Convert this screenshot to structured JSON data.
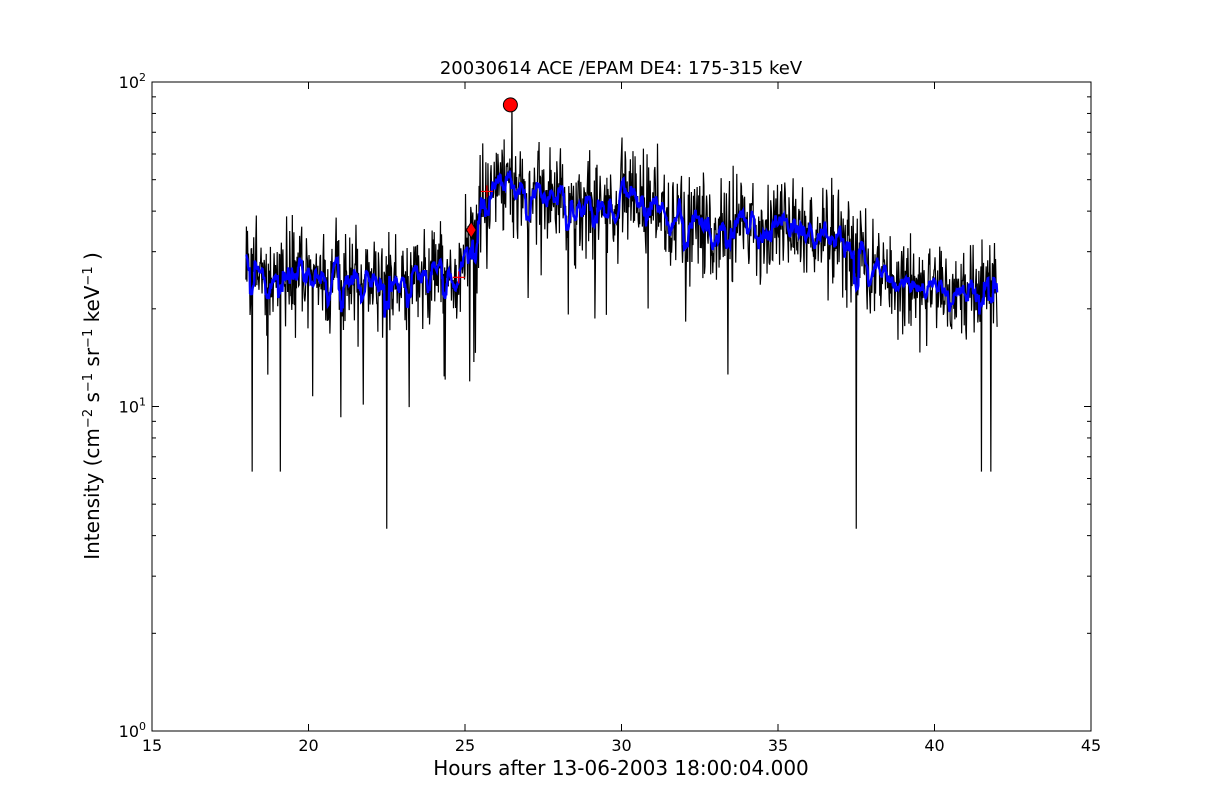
{
  "chart_data": {
    "type": "line",
    "title": "20030614 ACE /EPAM DE4: 175-315 keV",
    "xlabel": "Hours after 13-06-2003 18:00:04.000",
    "ylabel": {
      "prefix": "Intensity (cm",
      "sup1": "−2",
      "mid1": " s",
      "sup2": "−1",
      "mid2": " sr",
      "sup3": "−1",
      "mid3": " keV",
      "sup4": "−1",
      "suffix": " )"
    },
    "xlim": [
      15,
      45
    ],
    "ylim": [
      1,
      100
    ],
    "yscale": "log",
    "grid": false,
    "x_ticks": [
      15,
      20,
      25,
      30,
      35,
      40,
      45
    ],
    "x_tick_labels": [
      "15",
      "20",
      "25",
      "30",
      "35",
      "40",
      "45"
    ],
    "y_ticks": [
      1,
      10,
      100
    ],
    "y_tick_labels": [
      {
        "base": "10",
        "exp": "0"
      },
      {
        "base": "10",
        "exp": "1"
      },
      {
        "base": "10",
        "exp": "2"
      }
    ],
    "series": [
      {
        "style": "raw",
        "color": "#000000",
        "x_range": [
          18.0,
          42.0
        ],
        "trend": [
          [
            18.0,
            26
          ],
          [
            20.0,
            26
          ],
          [
            22.0,
            25
          ],
          [
            24.0,
            25
          ],
          [
            24.8,
            26
          ],
          [
            25.2,
            35
          ],
          [
            25.6,
            44
          ],
          [
            26.3,
            48
          ],
          [
            27.0,
            45
          ],
          [
            28.0,
            42
          ],
          [
            29.0,
            41
          ],
          [
            30.0,
            42
          ],
          [
            31.0,
            40
          ],
          [
            32.0,
            37
          ],
          [
            33.0,
            36
          ],
          [
            34.0,
            35
          ],
          [
            35.0,
            36
          ],
          [
            36.0,
            35
          ],
          [
            37.0,
            33
          ],
          [
            37.6,
            31
          ],
          [
            38.0,
            26
          ],
          [
            39.0,
            24
          ],
          [
            40.0,
            23
          ],
          [
            41.0,
            23
          ],
          [
            42.0,
            23
          ]
        ],
        "notable_points": [
          {
            "x": 18.2,
            "y": 6.3
          },
          {
            "x": 19.1,
            "y": 6.3
          },
          {
            "x": 22.5,
            "y": 4.2
          },
          {
            "x": 26.5,
            "y": 88
          },
          {
            "x": 37.5,
            "y": 4.2
          },
          {
            "x": 41.5,
            "y": 6.3
          },
          {
            "x": 41.8,
            "y": 6.3
          }
        ]
      },
      {
        "style": "smoothed",
        "color": "#0000ff",
        "x_range": [
          18.0,
          42.0
        ]
      }
    ],
    "markers": [
      {
        "shape": "circle",
        "color": "#ff0000",
        "x": 26.45,
        "y": 85
      },
      {
        "shape": "diamond",
        "color": "#ff0000",
        "x": 25.2,
        "y": 35
      },
      {
        "shape": "plus",
        "color": "#ff0000",
        "x": 24.8,
        "y": 25
      },
      {
        "shape": "plus",
        "color": "#ff0000",
        "x": 25.7,
        "y": 46
      }
    ]
  }
}
